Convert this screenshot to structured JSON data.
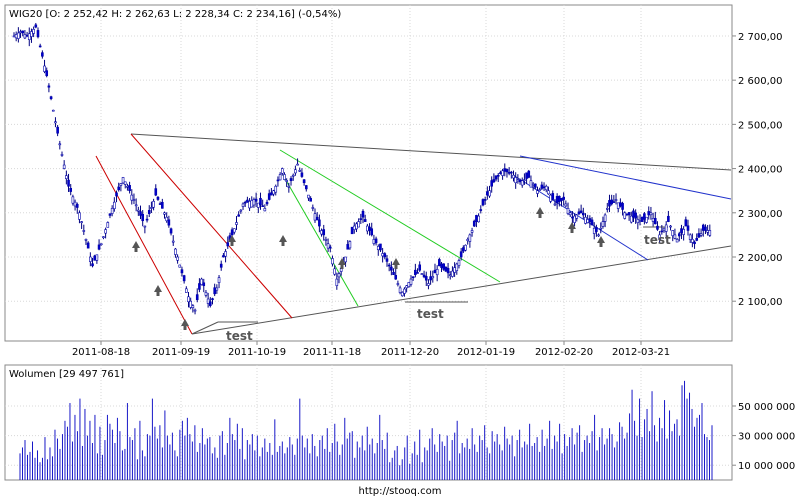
{
  "chart_data": [
    {
      "type": "candlestick",
      "title": "WIG20 [O: 2 252,42  H: 2 262,63  L: 2 228,34  C: 2 234,16] (-0,54%)",
      "x_tick_labels": [
        "2011-08-18",
        "2011-09-19",
        "2011-10-19",
        "2011-11-18",
        "2011-12-20",
        "2012-01-19",
        "2012-02-20",
        "2012-03-21"
      ],
      "y_tick_labels": [
        "2 100,00",
        "2 200,00",
        "2 300,00",
        "2 400,00",
        "2 500,00",
        "2 600,00",
        "2 700,00"
      ],
      "y_ticks": [
        2100,
        2200,
        2300,
        2400,
        2500,
        2600,
        2700
      ],
      "ylim": [
        2010,
        2770
      ],
      "grid": true,
      "annotations": [
        "test",
        "test",
        "test"
      ],
      "close_path": [
        [
          0,
          2700
        ],
        [
          3,
          2710
        ],
        [
          6,
          2700
        ],
        [
          10,
          2720
        ],
        [
          15,
          2610
        ],
        [
          20,
          2480
        ],
        [
          25,
          2360
        ],
        [
          30,
          2300
        ],
        [
          36,
          2180
        ],
        [
          40,
          2230
        ],
        [
          45,
          2310
        ],
        [
          50,
          2380
        ],
        [
          55,
          2330
        ],
        [
          60,
          2270
        ],
        [
          65,
          2340
        ],
        [
          70,
          2290
        ],
        [
          75,
          2200
        ],
        [
          80,
          2110
        ],
        [
          83,
          2080
        ],
        [
          86,
          2150
        ],
        [
          90,
          2090
        ],
        [
          93,
          2130
        ],
        [
          96,
          2200
        ],
        [
          100,
          2250
        ],
        [
          105,
          2320
        ],
        [
          110,
          2330
        ],
        [
          115,
          2310
        ],
        [
          120,
          2360
        ],
        [
          123,
          2400
        ],
        [
          126,
          2360
        ],
        [
          130,
          2410
        ],
        [
          135,
          2340
        ],
        [
          140,
          2270
        ],
        [
          145,
          2220
        ],
        [
          148,
          2150
        ],
        [
          152,
          2200
        ],
        [
          156,
          2270
        ],
        [
          160,
          2290
        ],
        [
          165,
          2240
        ],
        [
          170,
          2200
        ],
        [
          175,
          2150
        ],
        [
          178,
          2120
        ],
        [
          182,
          2150
        ],
        [
          186,
          2170
        ],
        [
          190,
          2140
        ],
        [
          195,
          2180
        ],
        [
          200,
          2160
        ],
        [
          205,
          2200
        ],
        [
          208,
          2240
        ],
        [
          212,
          2280
        ],
        [
          216,
          2330
        ],
        [
          220,
          2370
        ],
        [
          224,
          2395
        ],
        [
          228,
          2390
        ],
        [
          232,
          2370
        ],
        [
          236,
          2380
        ],
        [
          240,
          2350
        ],
        [
          244,
          2360
        ],
        [
          248,
          2320
        ],
        [
          252,
          2330
        ],
        [
          256,
          2290
        ],
        [
          260,
          2300
        ],
        [
          264,
          2280
        ],
        [
          268,
          2250
        ],
        [
          272,
          2310
        ],
        [
          276,
          2330
        ],
        [
          280,
          2300
        ],
        [
          284,
          2290
        ],
        [
          288,
          2280
        ],
        [
          292,
          2300
        ],
        [
          296,
          2250
        ],
        [
          300,
          2280
        ],
        [
          304,
          2240
        ],
        [
          308,
          2270
        ],
        [
          312,
          2230
        ],
        [
          316,
          2260
        ]
      ],
      "volume": {
        "label": "Wolumen [29 497 761]",
        "y_tick_labels": [
          "10 000 000",
          "30 000 000",
          "50 000 000"
        ],
        "y_ticks": [
          10000000,
          30000000,
          50000000
        ],
        "ylim": [
          0,
          75000000
        ],
        "values": [
          18000000,
          22000000,
          27000000,
          17000000,
          19000000,
          26000000,
          15000000,
          20000000,
          12000000,
          15000000,
          29000000,
          14000000,
          22000000,
          16000000,
          34000000,
          28000000,
          21000000,
          31000000,
          40000000,
          36000000,
          52000000,
          26000000,
          44000000,
          33000000,
          55000000,
          23000000,
          48000000,
          30000000,
          40000000,
          25000000,
          44000000,
          18000000,
          36000000,
          17000000,
          27000000,
          44000000,
          38000000,
          34000000,
          25000000,
          42000000,
          33000000,
          20000000,
          21000000,
          52000000,
          29000000,
          27000000,
          35000000,
          14000000,
          40000000,
          20000000,
          16000000,
          31000000,
          30000000,
          55000000,
          36000000,
          28000000,
          37000000,
          22000000,
          47000000,
          30000000,
          24000000,
          32000000,
          20000000,
          16000000,
          34000000,
          40000000,
          30000000,
          42000000,
          31000000,
          26000000,
          37000000,
          19000000,
          25000000,
          35000000,
          24000000,
          28000000,
          29000000,
          18000000,
          22000000,
          15000000,
          30000000,
          33000000,
          17000000,
          25000000,
          42000000,
          31000000,
          27000000,
          38000000,
          21000000,
          35000000,
          14000000,
          27000000,
          24000000,
          31000000,
          20000000,
          30000000,
          16000000,
          22000000,
          28000000,
          19000000,
          25000000,
          17000000,
          41000000,
          19000000,
          23000000,
          26000000,
          18000000,
          22000000,
          29000000,
          24000000,
          17000000,
          28000000,
          55000000,
          30000000,
          22000000,
          28000000,
          18000000,
          31000000,
          23000000,
          16000000,
          27000000,
          30000000,
          21000000,
          35000000,
          19000000,
          25000000,
          38000000,
          26000000,
          17000000,
          24000000,
          42000000,
          28000000,
          32000000,
          33000000,
          15000000,
          26000000,
          22000000,
          30000000,
          20000000,
          36000000,
          24000000,
          28000000,
          18000000,
          25000000,
          44000000,
          27000000,
          21000000,
          32000000,
          12000000,
          15000000,
          20000000,
          23000000,
          10000000,
          14000000,
          22000000,
          30000000,
          11000000,
          18000000,
          26000000,
          17000000,
          34000000,
          12000000,
          22000000,
          20000000,
          28000000,
          35000000,
          24000000,
          19000000,
          31000000,
          26000000,
          23000000,
          30000000,
          13000000,
          27000000,
          32000000,
          40000000,
          18000000,
          25000000,
          22000000,
          28000000,
          21000000,
          35000000,
          24000000,
          19000000,
          30000000,
          27000000,
          37000000,
          22000000,
          18000000,
          33000000,
          26000000,
          31000000,
          24000000,
          20000000,
          36000000,
          28000000,
          24000000,
          30000000,
          16000000,
          27000000,
          34000000,
          22000000,
          26000000,
          24000000,
          38000000,
          23000000,
          25000000,
          29000000,
          19000000,
          34000000,
          23000000,
          28000000,
          40000000,
          21000000,
          30000000,
          26000000,
          38000000,
          18000000,
          31000000,
          23000000,
          29000000,
          35000000,
          24000000,
          32000000,
          37000000,
          19000000,
          27000000,
          30000000,
          25000000,
          33000000,
          44000000,
          20000000,
          29000000,
          35000000,
          24000000,
          28000000,
          35000000,
          31000000,
          22000000,
          26000000,
          39000000,
          36000000,
          28000000,
          32000000,
          45000000,
          61000000,
          40000000,
          30000000,
          55000000,
          29000000,
          41000000,
          48000000,
          33000000,
          60000000,
          37000000,
          26000000,
          42000000,
          35000000,
          54000000,
          28000000,
          47000000,
          33000000,
          38000000,
          41000000,
          30000000,
          64000000,
          67000000,
          55000000,
          59000000,
          48000000,
          36000000,
          42000000,
          44000000,
          52000000,
          31000000,
          29000000,
          27000000,
          37000000
        ]
      }
    }
  ],
  "footer": {
    "url": "http://stooq.com"
  }
}
